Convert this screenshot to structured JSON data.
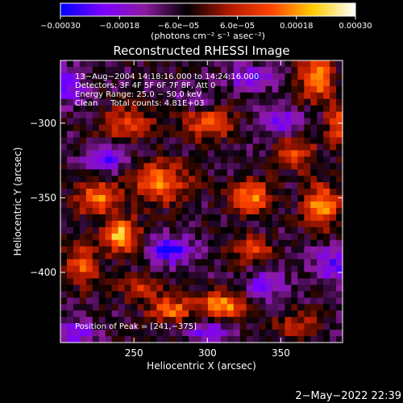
{
  "chart_data": {
    "type": "heatmap",
    "title": "Reconstructed RHESSI Image",
    "xlabel": "Heliocentric X (arcsec)",
    "ylabel": "Heliocentric Y (arcsec)",
    "xlim": [
      200,
      392
    ],
    "ylim": [
      -447,
      -258
    ],
    "x_ticks": [
      250,
      300,
      350
    ],
    "x_tick_labels": [
      "250",
      "300",
      "350"
    ],
    "y_ticks": [
      -300,
      -350,
      -400
    ],
    "y_tick_labels": [
      "−300",
      "−350",
      "−400"
    ],
    "colorbar": {
      "range": [
        -0.0003,
        0.0003
      ],
      "ticks": [
        -0.0003,
        -0.00018,
        -6e-05,
        6e-05,
        0.00018,
        0.0003
      ],
      "tick_labels": [
        "−0.00030",
        "−0.00018",
        "−6.0e−05",
        "6.0e−05",
        "0.00018",
        "0.00030"
      ],
      "units": "(photons cm⁻² s⁻¹ asec⁻²)",
      "colors": [
        "#0000ff",
        "#7b00ff",
        "#8c1aa0",
        "#000000",
        "#b01800",
        "#ff4400",
        "#ffcc00",
        "#ffffff"
      ]
    },
    "annotations": [
      "13−Aug−2004 14:18:16.000 to 14:24:16.000",
      "Detectors: 3F 4F 5F 6F 7F 8F, Att 0",
      "Energy Range: 25.0 − 50.0 keV",
      "Clean     Total counts: 4.81E+03"
    ],
    "peak_label": "Position of Peak = [241,−375]",
    "peak_position": [
      241,
      -375
    ],
    "peak_value": 0.0003,
    "hotspots": [
      {
        "x": 241,
        "y": -375,
        "amp": 1.0,
        "sx": 8,
        "sy": 8
      },
      {
        "x": 310,
        "y": -422,
        "amp": 0.85,
        "sx": 11,
        "sy": 6
      },
      {
        "x": 275,
        "y": -425,
        "amp": 0.7,
        "sx": 10,
        "sy": 6
      },
      {
        "x": 375,
        "y": -270,
        "amp": 0.85,
        "sx": 8,
        "sy": 10
      },
      {
        "x": 378,
        "y": -355,
        "amp": 0.8,
        "sx": 9,
        "sy": 10
      },
      {
        "x": 268,
        "y": -340,
        "amp": 0.7,
        "sx": 14,
        "sy": 10
      },
      {
        "x": 225,
        "y": -350,
        "amp": 0.75,
        "sx": 10,
        "sy": 8
      },
      {
        "x": 300,
        "y": -300,
        "amp": 0.65,
        "sx": 12,
        "sy": 8
      },
      {
        "x": 330,
        "y": -350,
        "amp": 0.75,
        "sx": 10,
        "sy": 8
      },
      {
        "x": 360,
        "y": -320,
        "amp": 0.55,
        "sx": 10,
        "sy": 8
      },
      {
        "x": 330,
        "y": -385,
        "amp": 0.55,
        "sx": 10,
        "sy": 6
      },
      {
        "x": 215,
        "y": -395,
        "amp": 0.6,
        "sx": 8,
        "sy": 10
      },
      {
        "x": 245,
        "y": -300,
        "amp": 0.55,
        "sx": 12,
        "sy": 8
      },
      {
        "x": 390,
        "y": -300,
        "amp": 0.6,
        "sx": 6,
        "sy": 10
      },
      {
        "x": 255,
        "y": -410,
        "amp": 0.5,
        "sx": 10,
        "sy": 6
      },
      {
        "x": 360,
        "y": -435,
        "amp": 0.45,
        "sx": 10,
        "sy": 6
      },
      {
        "x": 275,
        "y": -385,
        "amp": -0.75,
        "sx": 10,
        "sy": 6
      },
      {
        "x": 230,
        "y": -325,
        "amp": -0.55,
        "sx": 10,
        "sy": 6
      },
      {
        "x": 350,
        "y": -300,
        "amp": -0.55,
        "sx": 10,
        "sy": 6
      },
      {
        "x": 300,
        "y": -440,
        "amp": -0.5,
        "sx": 10,
        "sy": 5
      },
      {
        "x": 212,
        "y": -440,
        "amp": -0.5,
        "sx": 8,
        "sy": 6
      },
      {
        "x": 340,
        "y": -408,
        "amp": -0.55,
        "sx": 8,
        "sy": 6
      },
      {
        "x": 385,
        "y": -395,
        "amp": -0.55,
        "sx": 8,
        "sy": 8
      },
      {
        "x": 205,
        "y": -275,
        "amp": -0.5,
        "sx": 8,
        "sy": 8
      },
      {
        "x": 330,
        "y": -270,
        "amp": -0.5,
        "sx": 10,
        "sy": 6
      },
      {
        "x": 292,
        "y": -285,
        "amp": -0.4,
        "sx": 8,
        "sy": 5
      }
    ]
  },
  "footer": {
    "date": "2−May−2022 22:39"
  },
  "colors": {
    "background": "#000000",
    "text": "#ffffff"
  }
}
